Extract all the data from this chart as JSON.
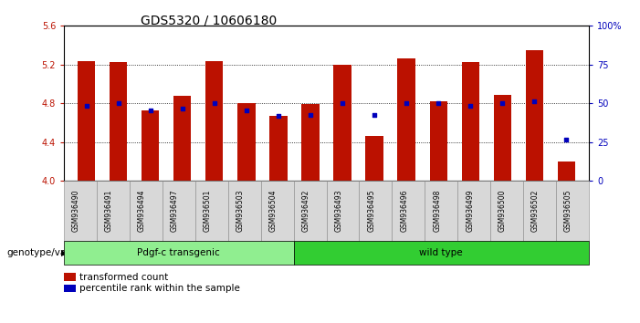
{
  "title": "GDS5320 / 10606180",
  "samples": [
    "GSM936490",
    "GSM936491",
    "GSM936494",
    "GSM936497",
    "GSM936501",
    "GSM936503",
    "GSM936504",
    "GSM936492",
    "GSM936493",
    "GSM936495",
    "GSM936496",
    "GSM936498",
    "GSM936499",
    "GSM936500",
    "GSM936502",
    "GSM936505"
  ],
  "bar_values": [
    5.24,
    5.23,
    4.73,
    4.88,
    5.24,
    4.8,
    4.67,
    4.79,
    5.2,
    4.46,
    5.26,
    4.82,
    5.23,
    4.89,
    5.35,
    4.2
  ],
  "percentile_y": [
    4.77,
    4.8,
    4.73,
    4.75,
    4.8,
    4.73,
    4.67,
    4.68,
    4.8,
    4.68,
    4.8,
    4.8,
    4.77,
    4.8,
    4.82,
    4.43
  ],
  "groups": [
    {
      "label": "Pdgf-c transgenic",
      "start": 0,
      "end": 6,
      "color": "#90EE90"
    },
    {
      "label": "wild type",
      "start": 7,
      "end": 15,
      "color": "#32CD32"
    }
  ],
  "ylim": [
    4.0,
    5.6
  ],
  "yticks_left": [
    4.0,
    4.4,
    4.8,
    5.2,
    5.6
  ],
  "yticks_right": [
    0,
    25,
    50,
    75,
    100
  ],
  "bar_color": "#BB1100",
  "dot_color": "#0000BB",
  "title_fontsize": 10,
  "tick_fontsize": 7,
  "label_fontsize": 7.5
}
